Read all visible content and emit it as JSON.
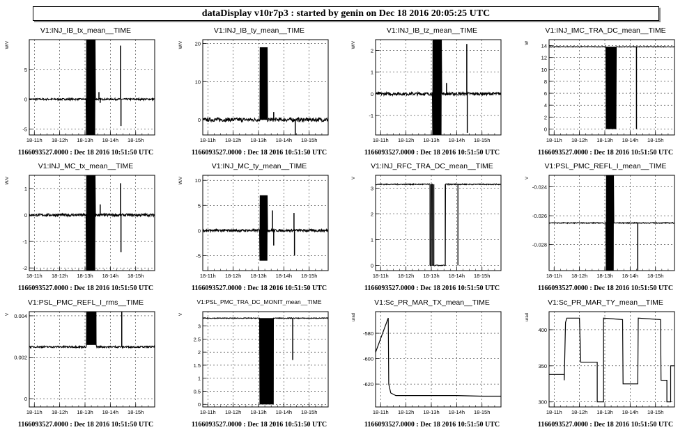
{
  "header": {
    "title": "dataDisplay v10r7p3 : started by genin on Dec 18 2016 20:05:25 UTC"
  },
  "footer_caption": "1166093527.0000 : Dec 18 2016 10:51:50 UTC",
  "time_ticks": [
    "18-11h",
    "18-12h",
    "18-13h",
    "18-14h",
    "18-15h"
  ],
  "chart_data": [
    {
      "type": "line",
      "title": "V1:INJ_IB_tx_mean__TIME",
      "ylabel": "W/V",
      "ylim": [
        -6,
        10
      ],
      "yticks": [
        -5,
        0,
        5
      ],
      "ytick_labels": [
        "-5",
        "0",
        "5"
      ],
      "baseline": 0,
      "noise": 0.15,
      "burst": {
        "x": [
          13.05,
          13.4
        ],
        "lo": -6,
        "hi": 10
      },
      "spikes": [
        {
          "x": 13.55,
          "v": 1.2
        },
        {
          "x": 13.6,
          "v": -0.6
        },
        {
          "x": 14.4,
          "v": 9
        },
        {
          "x": 14.42,
          "v": -4.5
        }
      ],
      "xlim": [
        10.8,
        15.75
      ],
      "xticks": [
        11,
        12,
        13,
        14,
        15
      ]
    },
    {
      "type": "line",
      "title": "V1:INJ_IB_ty_mean__TIME",
      "ylabel": "W/V",
      "ylim": [
        -4,
        21
      ],
      "yticks": [
        0,
        10,
        20
      ],
      "ytick_labels": [
        "0",
        "10",
        "20"
      ],
      "baseline": 0,
      "noise": 0.5,
      "burst": {
        "x": [
          13.05,
          13.35
        ],
        "lo": 0,
        "hi": 19
      },
      "spikes": [
        {
          "x": 13.6,
          "v": 2
        },
        {
          "x": 14.45,
          "v": -4
        }
      ],
      "xlim": [
        10.8,
        15.75
      ],
      "xticks": [
        11,
        12,
        13,
        14,
        15
      ]
    },
    {
      "type": "line",
      "title": "V1:INJ_IB_tz_mean__TIME",
      "ylabel": "W/V",
      "ylim": [
        -1.9,
        2.5
      ],
      "yticks": [
        -1,
        0,
        1,
        2
      ],
      "ytick_labels": [
        "-1",
        "0",
        "1",
        "2"
      ],
      "baseline": 0,
      "noise": 0.07,
      "burst": {
        "x": [
          13.05,
          13.4
        ],
        "lo": -1.9,
        "hi": 2.5
      },
      "spikes": [
        {
          "x": 13.6,
          "v": 0.5
        },
        {
          "x": 14.4,
          "v": 2.3
        },
        {
          "x": 14.42,
          "v": -1.8
        }
      ],
      "xlim": [
        10.8,
        15.75
      ],
      "xticks": [
        11,
        12,
        13,
        14,
        15
      ]
    },
    {
      "type": "line",
      "title": "V1:INJ_IMC_TRA_DC_mean__TIME",
      "ylabel": "W",
      "ylim": [
        -1,
        15
      ],
      "yticks": [
        0,
        2,
        4,
        6,
        8,
        10,
        12,
        14
      ],
      "ytick_labels": [
        "0",
        "2",
        "4",
        "6",
        "8",
        "10",
        "12",
        "14"
      ],
      "baseline": 13.8,
      "noise": 0.05,
      "burst": {
        "x": [
          13.05,
          13.45
        ],
        "lo": 0,
        "hi": 13.8
      },
      "spikes": [
        {
          "x": 14.25,
          "v": 0
        }
      ],
      "xlim": [
        10.8,
        15.75
      ],
      "xticks": [
        11,
        12,
        13,
        14,
        15
      ]
    },
    {
      "type": "line",
      "title": "V1:INJ_MC_tx_mean__TIME",
      "ylabel": "W/V",
      "ylim": [
        -2.1,
        1.5
      ],
      "yticks": [
        -2,
        -1,
        0,
        1
      ],
      "ytick_labels": [
        "-2",
        "-1",
        "0",
        "1"
      ],
      "baseline": 0,
      "noise": 0.05,
      "burst": {
        "x": [
          13.05,
          13.4
        ],
        "lo": -2.1,
        "hi": 1.5
      },
      "spikes": [
        {
          "x": 13.6,
          "v": 0.4
        },
        {
          "x": 14.4,
          "v": 1.2
        },
        {
          "x": 14.42,
          "v": -1.4
        }
      ],
      "xlim": [
        10.8,
        15.75
      ],
      "xticks": [
        11,
        12,
        13,
        14,
        15
      ]
    },
    {
      "type": "line",
      "title": "V1:INJ_MC_ty_mean__TIME",
      "ylabel": "W/V",
      "ylim": [
        -8,
        11
      ],
      "yticks": [
        -5,
        0,
        5,
        10
      ],
      "ytick_labels": [
        "-5",
        "0",
        "5",
        "10"
      ],
      "baseline": 0,
      "noise": 0.25,
      "burst": {
        "x": [
          13.05,
          13.35
        ],
        "lo": -6,
        "hi": 7
      },
      "spikes": [
        {
          "x": 13.55,
          "v": 4
        },
        {
          "x": 13.6,
          "v": -3
        },
        {
          "x": 14.4,
          "v": 3.5
        },
        {
          "x": 14.42,
          "v": -5
        }
      ],
      "xlim": [
        10.8,
        15.75
      ],
      "xticks": [
        11,
        12,
        13,
        14,
        15
      ]
    },
    {
      "type": "line",
      "title": "V1:INJ_RFC_TRA_DC_mean__TIME",
      "ylabel": "V",
      "ylim": [
        -0.2,
        3.5
      ],
      "yticks": [
        0,
        1,
        2,
        3
      ],
      "ytick_labels": [
        "0",
        "1",
        "2",
        "3"
      ],
      "baseline": 3.15,
      "noise": 0.02,
      "drops": [
        {
          "x": [
            12.95,
            13.0
          ]
        },
        {
          "x": 13.1
        },
        {
          "x": [
            13.05,
            13.55
          ]
        },
        {
          "x": 14.05
        }
      ],
      "xlim": [
        10.8,
        15.75
      ],
      "xticks": [
        11,
        12,
        13,
        14,
        15
      ]
    },
    {
      "type": "line",
      "title": "V1:PSL_PMC_REFL_I_mean__TIME",
      "ylabel": "V",
      "ylim": [
        -0.0298,
        -0.0232
      ],
      "yticks": [
        -0.028,
        -0.026,
        -0.024
      ],
      "ytick_labels": [
        "-0.028",
        "-0.026",
        "-0.024"
      ],
      "baseline": -0.0265,
      "noise": 3e-05,
      "burst": {
        "x": [
          13.05,
          13.35
        ],
        "lo": -0.0298,
        "hi": -0.0232
      },
      "spikes": [
        {
          "x": 14.3,
          "v": -0.0298
        }
      ],
      "xlim": [
        10.8,
        15.75
      ],
      "xticks": [
        11,
        12,
        13,
        14,
        15
      ]
    },
    {
      "type": "line",
      "title": "V1:PSL_PMC_REFL_I_rms__TIME",
      "ylabel": "V",
      "ylim": [
        -0.0004,
        0.0042
      ],
      "yticks": [
        0,
        0.002,
        0.004
      ],
      "ytick_labels": [
        "0",
        "0.002",
        "0.004"
      ],
      "baseline": 0.0025,
      "noise": 4e-05,
      "burst": {
        "x": [
          13.05,
          13.45
        ],
        "lo": 0.0026,
        "hi": 0.0042
      },
      "spikes": [
        {
          "x": 14.45,
          "v": 0.0042
        }
      ],
      "xlim": [
        10.8,
        15.75
      ],
      "xticks": [
        11,
        12,
        13,
        14,
        15
      ]
    },
    {
      "type": "line",
      "title": "V1:PSL_PMC_TRA_DC_MONIT_mean__TIME",
      "ylabel": "V",
      "ylim": [
        -0.1,
        3.55
      ],
      "yticks": [
        0,
        0.5,
        1,
        1.5,
        2,
        2.5,
        3
      ],
      "ytick_labels": [
        "0",
        "0.5",
        "1",
        "1.5",
        "2",
        "2.5",
        "3"
      ],
      "baseline": 3.3,
      "noise": 0.015,
      "burst": {
        "x": [
          13.05,
          13.6
        ],
        "lo": 0,
        "hi": 3.3
      },
      "spikes": [
        {
          "x": 14.35,
          "v": 1.7
        }
      ],
      "xlim": [
        10.8,
        15.75
      ],
      "xticks": [
        11,
        12,
        13,
        14,
        15
      ]
    },
    {
      "type": "line",
      "title": "V1:Sc_PR_MAR_TX_mean__TIME",
      "ylabel": "urad",
      "ylim": [
        -638,
        -563
      ],
      "yticks": [
        -620,
        -600,
        -580
      ],
      "ytick_labels": [
        "-620",
        "-600",
        "-580"
      ],
      "points": [
        [
          10.8,
          -595
        ],
        [
          11.3,
          -568
        ],
        [
          11.32,
          -620
        ],
        [
          11.4,
          -627
        ],
        [
          11.6,
          -629
        ],
        [
          14,
          -629
        ],
        [
          15,
          -629.5
        ],
        [
          15.75,
          -629.5
        ]
      ],
      "xlim": [
        10.8,
        15.75
      ],
      "xticks": [
        11,
        12,
        13,
        14,
        15
      ]
    },
    {
      "type": "line",
      "title": "V1:Sc_PR_MAR_TY_mean__TIME",
      "ylabel": "urad",
      "ylim": [
        293,
        425
      ],
      "yticks": [
        300,
        350,
        400
      ],
      "ytick_labels": [
        "300",
        "350",
        "400"
      ],
      "points": [
        [
          10.8,
          338
        ],
        [
          11.4,
          338
        ],
        [
          11.4,
          330
        ],
        [
          11.45,
          410
        ],
        [
          11.5,
          416
        ],
        [
          12.0,
          416
        ],
        [
          12.05,
          355
        ],
        [
          12.7,
          355
        ],
        [
          12.7,
          300
        ],
        [
          12.95,
          300
        ],
        [
          12.95,
          416
        ],
        [
          13.7,
          414
        ],
        [
          13.72,
          325
        ],
        [
          14.3,
          325
        ],
        [
          14.32,
          416
        ],
        [
          15.2,
          414
        ],
        [
          15.22,
          330
        ],
        [
          15.45,
          330
        ],
        [
          15.45,
          300
        ],
        [
          15.6,
          300
        ],
        [
          15.6,
          350
        ],
        [
          15.75,
          350
        ]
      ],
      "xlim": [
        10.8,
        15.75
      ],
      "xticks": [
        11,
        12,
        13,
        14,
        15
      ]
    }
  ]
}
